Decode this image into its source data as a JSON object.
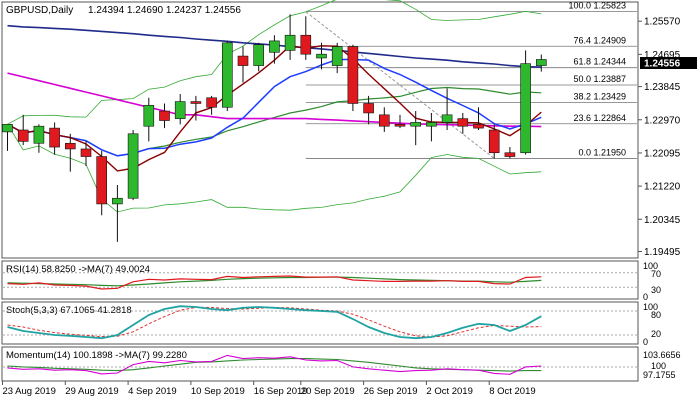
{
  "header": {
    "title": "GBPUSD,Daily",
    "ohlc": "1.24394 1.24690 1.24237 1.24556"
  },
  "price_axis": {
    "ticks": [
      "1.25570",
      "1.24695",
      "1.23845",
      "1.22970",
      "1.22095",
      "1.21220",
      "1.20345",
      "1.19495"
    ],
    "current_price": "1.24556"
  },
  "fibonacci": [
    {
      "label": "100.0 1.25823",
      "value": 1.25823
    },
    {
      "label": "76.4 1.24909",
      "value": 1.24909
    },
    {
      "label": "61.8 1.24344",
      "value": 1.24344
    },
    {
      "label": "50.0 1.23887",
      "value": 1.23887
    },
    {
      "label": "38.2 1.23429",
      "value": 1.23429
    },
    {
      "label": "23.6 1.22864",
      "value": 1.22864
    },
    {
      "label": "0.0 1.21950",
      "value": 1.2195
    }
  ],
  "date_axis": [
    "23 Aug 2019",
    "29 Aug 2019",
    "4 Sep 2019",
    "10 Sep 2019",
    "16 Sep 2019",
    "20 Sep 2019",
    "26 Sep 2019",
    "2 Oct 2019",
    "8 Oct 2019"
  ],
  "panels": {
    "rsi": {
      "label": "RSI(14) 58.8250 ->MA(7) 49.0024",
      "ticks": [
        "100",
        "70",
        "30",
        "0"
      ]
    },
    "stoch": {
      "label": "Stoch(5,3,3) 67.1065 41.2818",
      "ticks": [
        "100",
        "80",
        "20",
        "0"
      ]
    },
    "momentum": {
      "label": "Momentum(14) 100.1898 ->MA(7) 99.2280",
      "ticks": [
        "103.6656",
        "100",
        "97.1755"
      ]
    }
  },
  "colors": {
    "bull": "#2eb82e",
    "bear": "#e0191e",
    "ma_navy": "#1f2a8a",
    "ma_magenta": "#d400d4",
    "ma_green": "#2e8b2e",
    "ma_blue": "#1e3cff",
    "ma_brown": "#8b0000",
    "bollinger": "#33aa33",
    "stoch_main": "#1fa3a3",
    "stoch_signal": "#e03030"
  },
  "chart_data": {
    "type": "candlestick",
    "symbol": "GBPUSD",
    "timeframe": "Daily",
    "ylim": [
      1.1935,
      1.2605
    ],
    "candles": [
      {
        "o": 1.2265,
        "h": 1.2285,
        "l": 1.2215,
        "c": 1.2285
      },
      {
        "o": 1.227,
        "h": 1.231,
        "l": 1.223,
        "c": 1.224
      },
      {
        "o": 1.2235,
        "h": 1.2285,
        "l": 1.221,
        "c": 1.228
      },
      {
        "o": 1.2275,
        "h": 1.229,
        "l": 1.2205,
        "c": 1.2225
      },
      {
        "o": 1.2235,
        "h": 1.226,
        "l": 1.216,
        "c": 1.222
      },
      {
        "o": 1.222,
        "h": 1.224,
        "l": 1.2175,
        "c": 1.22
      },
      {
        "o": 1.22,
        "h": 1.2215,
        "l": 1.2045,
        "c": 1.2075
      },
      {
        "o": 1.2075,
        "h": 1.2125,
        "l": 1.1975,
        "c": 1.209
      },
      {
        "o": 1.209,
        "h": 1.227,
        "l": 1.2085,
        "c": 1.226
      },
      {
        "o": 1.228,
        "h": 1.2355,
        "l": 1.224,
        "c": 1.2335
      },
      {
        "o": 1.232,
        "h": 1.234,
        "l": 1.2275,
        "c": 1.2295
      },
      {
        "o": 1.23,
        "h": 1.2365,
        "l": 1.2285,
        "c": 1.2345
      },
      {
        "o": 1.2345,
        "h": 1.236,
        "l": 1.2295,
        "c": 1.234
      },
      {
        "o": 1.2355,
        "h": 1.236,
        "l": 1.231,
        "c": 1.233
      },
      {
        "o": 1.233,
        "h": 1.2505,
        "l": 1.232,
        "c": 1.25
      },
      {
        "o": 1.2465,
        "h": 1.249,
        "l": 1.2395,
        "c": 1.244
      },
      {
        "o": 1.244,
        "h": 1.25,
        "l": 1.2425,
        "c": 1.2495
      },
      {
        "o": 1.2475,
        "h": 1.252,
        "l": 1.2445,
        "c": 1.2505
      },
      {
        "o": 1.248,
        "h": 1.2575,
        "l": 1.2455,
        "c": 1.252
      },
      {
        "o": 1.252,
        "h": 1.257,
        "l": 1.2455,
        "c": 1.247
      },
      {
        "o": 1.246,
        "h": 1.25,
        "l": 1.243,
        "c": 1.247
      },
      {
        "o": 1.244,
        "h": 1.25,
        "l": 1.242,
        "c": 1.249
      },
      {
        "o": 1.249,
        "h": 1.2495,
        "l": 1.232,
        "c": 1.234
      },
      {
        "o": 1.234,
        "h": 1.236,
        "l": 1.2285,
        "c": 1.2315
      },
      {
        "o": 1.231,
        "h": 1.233,
        "l": 1.2265,
        "c": 1.228
      },
      {
        "o": 1.2285,
        "h": 1.231,
        "l": 1.2275,
        "c": 1.228
      },
      {
        "o": 1.228,
        "h": 1.232,
        "l": 1.223,
        "c": 1.229
      },
      {
        "o": 1.228,
        "h": 1.2315,
        "l": 1.224,
        "c": 1.229
      },
      {
        "o": 1.229,
        "h": 1.238,
        "l": 1.227,
        "c": 1.231
      },
      {
        "o": 1.23,
        "h": 1.2315,
        "l": 1.226,
        "c": 1.228
      },
      {
        "o": 1.2285,
        "h": 1.233,
        "l": 1.227,
        "c": 1.2275
      },
      {
        "o": 1.227,
        "h": 1.2285,
        "l": 1.2195,
        "c": 1.221
      },
      {
        "o": 1.221,
        "h": 1.2225,
        "l": 1.2195,
        "c": 1.22
      },
      {
        "o": 1.221,
        "h": 1.248,
        "l": 1.2205,
        "c": 1.2445
      },
      {
        "o": 1.244,
        "h": 1.2469,
        "l": 1.2424,
        "c": 1.2456
      }
    ]
  }
}
